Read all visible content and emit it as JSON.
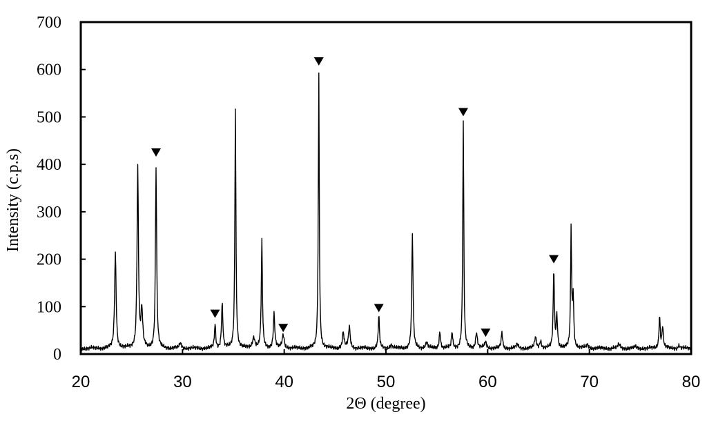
{
  "chart_data": {
    "type": "line",
    "title": "",
    "xlabel": "2Θ (degree)",
    "ylabel": "Intensity (c.p.s)",
    "xlim": [
      20,
      80
    ],
    "ylim": [
      0,
      700
    ],
    "x_ticks": [
      20,
      30,
      40,
      50,
      60,
      70,
      80
    ],
    "x_tick_labels": [
      "20",
      "30",
      "40",
      "50",
      "60",
      "70",
      "80"
    ],
    "y_ticks": [
      0,
      100,
      200,
      300,
      400,
      500,
      600,
      700
    ],
    "y_tick_labels": [
      "0",
      "100",
      "200",
      "300",
      "400",
      "500",
      "600",
      "700"
    ],
    "grid": false,
    "legend": "none",
    "line_color": "#000000",
    "baseline": 12,
    "peaks": [
      {
        "x": 23.4,
        "y": 215,
        "w": 0.22
      },
      {
        "x": 25.6,
        "y": 395,
        "w": 0.2
      },
      {
        "x": 26.0,
        "y": 90,
        "w": 0.25
      },
      {
        "x": 27.4,
        "y": 393,
        "w": 0.18
      },
      {
        "x": 29.8,
        "y": 22,
        "w": 0.3
      },
      {
        "x": 33.2,
        "y": 62,
        "w": 0.18
      },
      {
        "x": 33.9,
        "y": 107,
        "w": 0.2
      },
      {
        "x": 35.2,
        "y": 520,
        "w": 0.16
      },
      {
        "x": 37.0,
        "y": 35,
        "w": 0.35
      },
      {
        "x": 37.8,
        "y": 240,
        "w": 0.17
      },
      {
        "x": 39.0,
        "y": 85,
        "w": 0.22
      },
      {
        "x": 39.9,
        "y": 40,
        "w": 0.3
      },
      {
        "x": 43.4,
        "y": 592,
        "w": 0.15
      },
      {
        "x": 45.8,
        "y": 45,
        "w": 0.25
      },
      {
        "x": 46.4,
        "y": 58,
        "w": 0.25
      },
      {
        "x": 49.3,
        "y": 80,
        "w": 0.18
      },
      {
        "x": 50.5,
        "y": 20,
        "w": 0.3
      },
      {
        "x": 52.6,
        "y": 255,
        "w": 0.18
      },
      {
        "x": 54.0,
        "y": 25,
        "w": 0.3
      },
      {
        "x": 55.3,
        "y": 48,
        "w": 0.2
      },
      {
        "x": 56.5,
        "y": 45,
        "w": 0.2
      },
      {
        "x": 57.6,
        "y": 490,
        "w": 0.15
      },
      {
        "x": 58.9,
        "y": 45,
        "w": 0.25
      },
      {
        "x": 59.8,
        "y": 25,
        "w": 0.3
      },
      {
        "x": 61.4,
        "y": 46,
        "w": 0.2
      },
      {
        "x": 62.9,
        "y": 20,
        "w": 0.3
      },
      {
        "x": 64.7,
        "y": 35,
        "w": 0.25
      },
      {
        "x": 65.2,
        "y": 28,
        "w": 0.25
      },
      {
        "x": 66.5,
        "y": 178,
        "w": 0.17
      },
      {
        "x": 66.8,
        "y": 80,
        "w": 0.2
      },
      {
        "x": 68.2,
        "y": 265,
        "w": 0.15
      },
      {
        "x": 68.4,
        "y": 120,
        "w": 0.18
      },
      {
        "x": 69.8,
        "y": 20,
        "w": 0.3
      },
      {
        "x": 72.9,
        "y": 20,
        "w": 0.35
      },
      {
        "x": 74.5,
        "y": 15,
        "w": 0.35
      },
      {
        "x": 76.9,
        "y": 80,
        "w": 0.18
      },
      {
        "x": 77.2,
        "y": 58,
        "w": 0.2
      },
      {
        "x": 78.8,
        "y": 18,
        "w": 0.3
      }
    ],
    "markers": [
      {
        "symbol": "▼",
        "x": 27.4,
        "y": 425
      },
      {
        "symbol": "▼",
        "x": 33.2,
        "y": 85
      },
      {
        "symbol": "▼",
        "x": 39.9,
        "y": 55
      },
      {
        "symbol": "▼",
        "x": 43.4,
        "y": 617
      },
      {
        "symbol": "▼",
        "x": 49.3,
        "y": 97
      },
      {
        "symbol": "▼",
        "x": 57.6,
        "y": 510
      },
      {
        "symbol": "▼",
        "x": 59.8,
        "y": 45
      },
      {
        "symbol": "▼",
        "x": 66.5,
        "y": 200
      }
    ]
  }
}
